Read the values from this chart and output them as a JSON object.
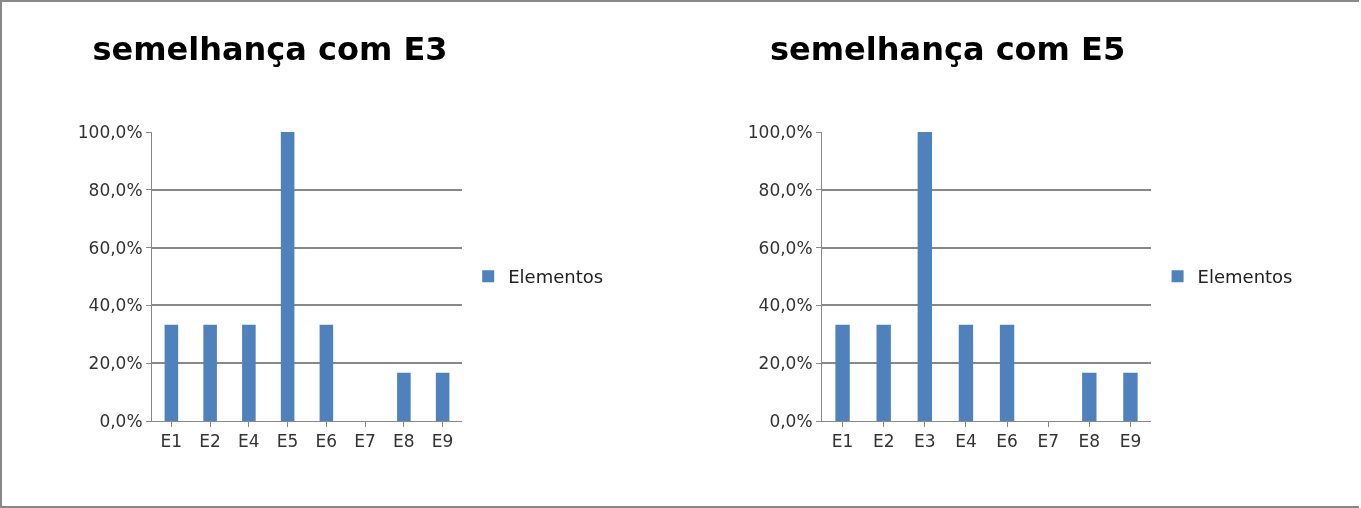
{
  "chart_data": [
    {
      "type": "bar",
      "title": "semelhança com E3",
      "categories": [
        "E1",
        "E2",
        "E4",
        "E5",
        "E6",
        "E7",
        "E8",
        "E9"
      ],
      "series": [
        {
          "name": "Elementos",
          "color": "#4f81bd",
          "values": [
            33.3,
            33.3,
            33.3,
            100,
            33.3,
            0,
            16.7,
            16.7
          ]
        }
      ],
      "ylim": [
        0,
        100
      ],
      "yticks": [
        {
          "value": 0,
          "label": "0,0%"
        },
        {
          "value": 20,
          "label": "20,0%"
        },
        {
          "value": 40,
          "label": "40,0%"
        },
        {
          "value": 60,
          "label": "60,0%"
        },
        {
          "value": 80,
          "label": "80,0%"
        },
        {
          "value": 100,
          "label": "100,0%"
        }
      ],
      "grid": "y",
      "legend": "right"
    },
    {
      "type": "bar",
      "title": "semelhança com E5",
      "categories": [
        "E1",
        "E2",
        "E3",
        "E4",
        "E6",
        "E7",
        "E8",
        "E9"
      ],
      "series": [
        {
          "name": "Elementos",
          "color": "#4f81bd",
          "values": [
            33.3,
            33.3,
            100,
            33.3,
            33.3,
            0,
            16.7,
            16.7
          ]
        }
      ],
      "ylim": [
        0,
        100
      ],
      "yticks": [
        {
          "value": 0,
          "label": "0,0%"
        },
        {
          "value": 20,
          "label": "20,0%"
        },
        {
          "value": 40,
          "label": "40,0%"
        },
        {
          "value": 60,
          "label": "60,0%"
        },
        {
          "value": 80,
          "label": "80,0%"
        },
        {
          "value": 100,
          "label": "100,0%"
        }
      ],
      "grid": "y",
      "legend": "right"
    }
  ]
}
